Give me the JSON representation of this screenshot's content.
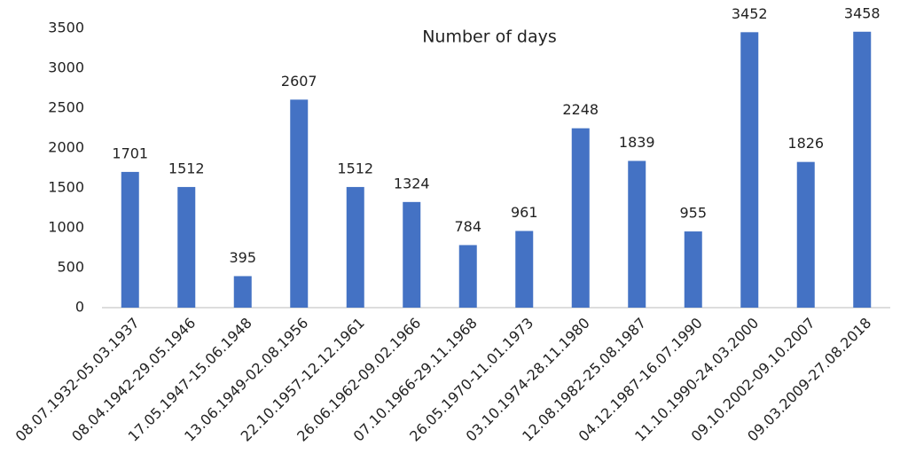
{
  "chart_data": {
    "type": "bar",
    "title": "Number of days",
    "categories": [
      "08.07.1932-05.03.1937",
      "08.04.1942-29.05.1946",
      "17.05.1947-15.06.1948",
      "13.06.1949-02.08.1956",
      "22.10.1957-12.12.1961",
      "26.06.1962-09.02.1966",
      "07.10.1966-29.11.1968",
      "26.05.1970-11.01.1973",
      "03.10.1974-28.11.1980",
      "12.08.1982-25.08.1987",
      "04.12.1987-16.07.1990",
      "11.10.1990-24.03.2000",
      "09.10.2002-09.10.2007",
      "09.03.2009-27.08.2018"
    ],
    "values": [
      1701,
      1512,
      395,
      2607,
      1512,
      1324,
      784,
      961,
      2248,
      1839,
      955,
      3452,
      1826,
      3458
    ],
    "color": "#4472c4",
    "ylim": [
      0,
      3500
    ],
    "yticks": [
      0,
      500,
      1000,
      1500,
      2000,
      2500,
      3000,
      3500
    ]
  }
}
